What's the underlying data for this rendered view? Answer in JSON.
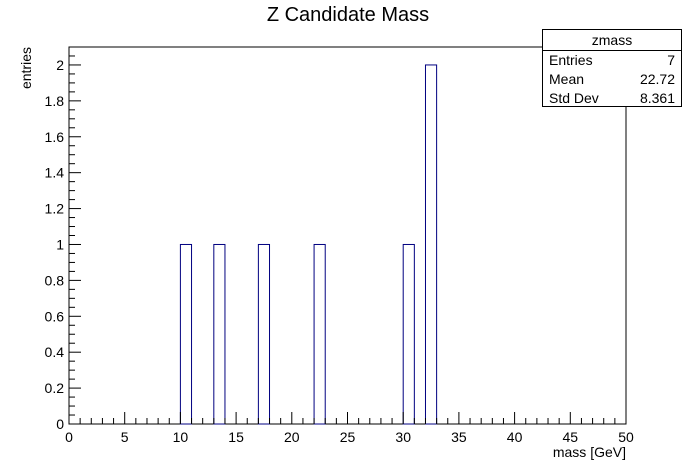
{
  "chart_data": {
    "type": "bar",
    "title": "Z Candidate Mass",
    "xlabel": "mass [GeV]",
    "ylabel": "entries",
    "xlim": [
      0,
      50
    ],
    "ylim": [
      0,
      2.1
    ],
    "bin_width": 1,
    "bins": [
      {
        "x": 10,
        "value": 1
      },
      {
        "x": 13,
        "value": 1
      },
      {
        "x": 17,
        "value": 1
      },
      {
        "x": 22,
        "value": 1
      },
      {
        "x": 30,
        "value": 1
      },
      {
        "x": 32,
        "value": 2
      }
    ],
    "xticks": [
      0,
      5,
      10,
      15,
      20,
      25,
      30,
      35,
      40,
      45,
      50
    ],
    "yticks": [
      0,
      0.2,
      0.4,
      0.6,
      0.8,
      1,
      1.2,
      1.4,
      1.6,
      1.8,
      2
    ],
    "yticklabels": [
      "0",
      "0.2",
      "0.4",
      "0.6",
      "0.8",
      "1",
      "1.2",
      "1.4",
      "1.6",
      "1.8",
      "2"
    ],
    "line_color": "#000080"
  },
  "stats": {
    "name": "zmass",
    "entries_label": "Entries",
    "entries_value": "7",
    "mean_label": "Mean",
    "mean_value": "22.72",
    "stddev_label": "Std Dev",
    "stddev_value": "8.361"
  }
}
